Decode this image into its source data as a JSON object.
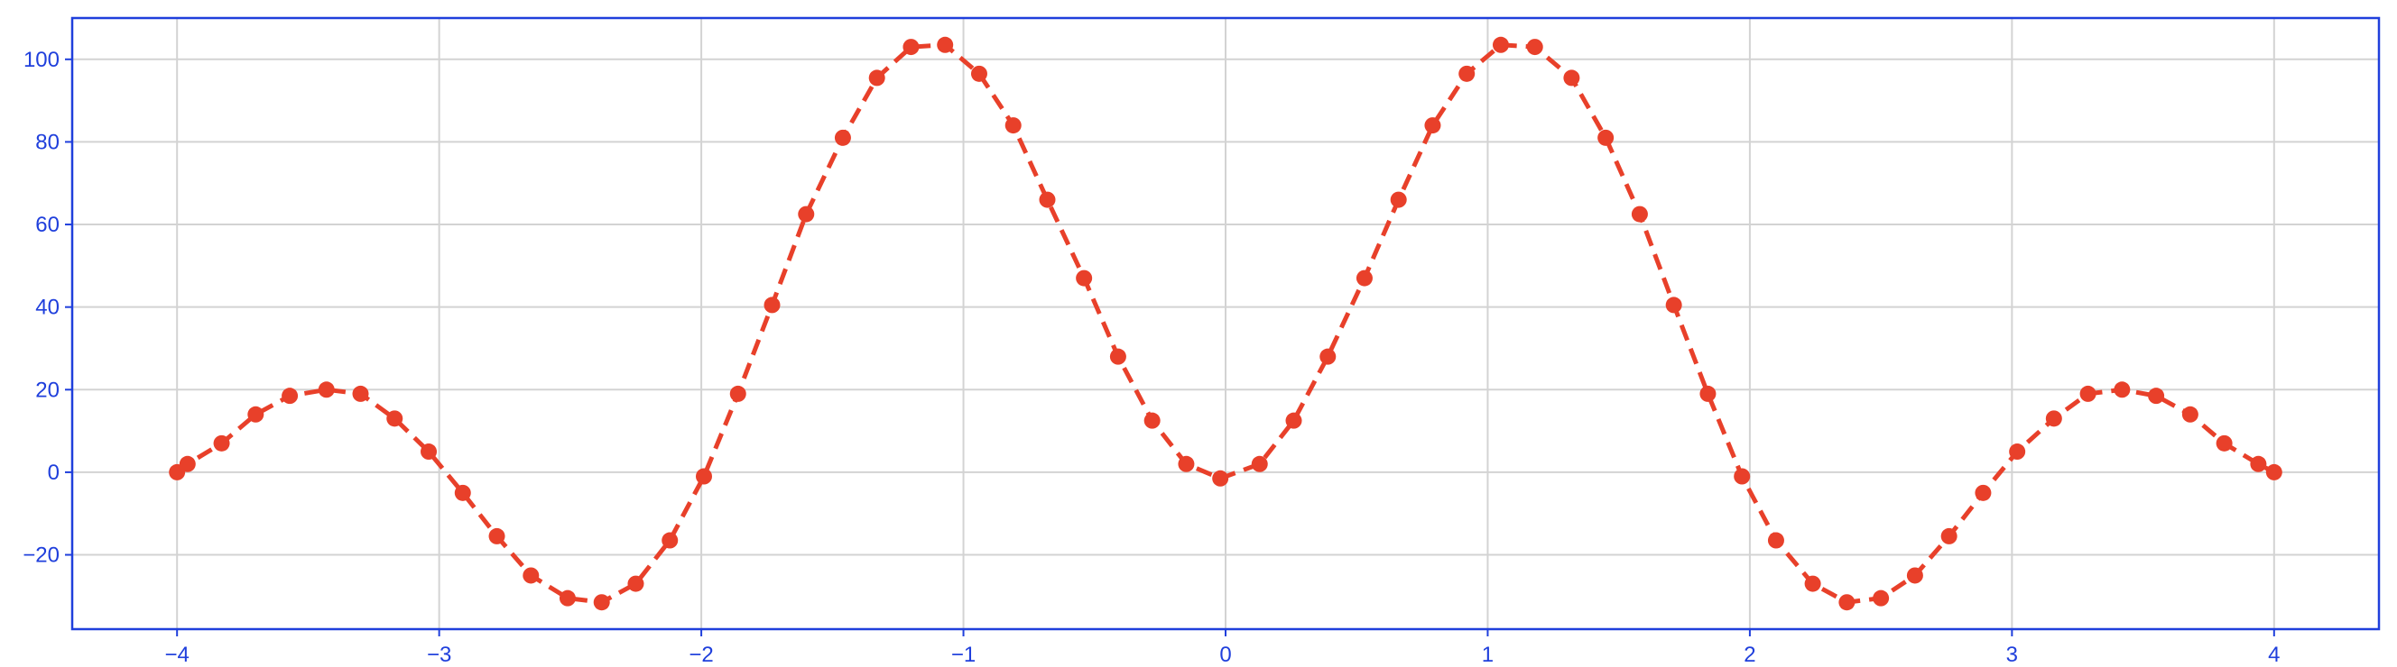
{
  "chart_data": {
    "type": "line",
    "title": "",
    "xlabel": "",
    "ylabel": "",
    "xlim": [
      -4.4,
      4.4
    ],
    "ylim": [
      -38,
      110
    ],
    "xticks": [
      -4,
      -3,
      -2,
      -1,
      0,
      1,
      2,
      3,
      4
    ],
    "xtick_labels": [
      "−4",
      "−3",
      "−2",
      "−1",
      "0",
      "1",
      "2",
      "3",
      "4"
    ],
    "yticks": [
      -20,
      0,
      20,
      40,
      60,
      80,
      100
    ],
    "ytick_labels": [
      "−20",
      "0",
      "20",
      "40",
      "60",
      "80",
      "100"
    ],
    "grid": true,
    "colors": {
      "series": "#e8402a",
      "frame": "#1f3fdc",
      "ticks": "#1f3fdc",
      "grid": "#d3d3d3"
    },
    "series": [
      {
        "line_style": "dashed",
        "marker": "circle",
        "x": [
          -4.0,
          -3.96,
          -3.83,
          -3.7,
          -3.57,
          -3.43,
          -3.3,
          -3.17,
          -3.04,
          -2.91,
          -2.78,
          -2.65,
          -2.51,
          -2.38,
          -2.25,
          -2.12,
          -1.99,
          -1.86,
          -1.73,
          -1.6,
          -1.46,
          -1.33,
          -1.2,
          -1.07,
          -0.94,
          -0.81,
          -0.68,
          -0.54,
          -0.41,
          -0.28,
          -0.15,
          -0.02,
          0.13,
          0.26,
          0.39,
          0.53,
          0.66,
          0.79,
          0.92,
          1.05,
          1.18,
          1.32,
          1.45,
          1.58,
          1.71,
          1.84,
          1.97,
          2.1,
          2.24,
          2.37,
          2.5,
          2.63,
          2.76,
          2.89,
          3.02,
          3.16,
          3.29,
          3.42,
          3.55,
          3.68,
          3.81,
          3.94,
          4.0
        ],
        "y": [
          0,
          2,
          7,
          14,
          18.5,
          20,
          19,
          13,
          5,
          -5,
          -15.5,
          -25,
          -30.5,
          -31.5,
          -27,
          -16.5,
          -1,
          19,
          40.5,
          62.5,
          81,
          95.5,
          103,
          103.5,
          96.5,
          84,
          66,
          47,
          28,
          12.5,
          2,
          -1.5,
          2,
          12.5,
          28,
          47,
          66,
          84,
          96.5,
          103.5,
          103,
          95.5,
          81,
          62.5,
          40.5,
          19,
          -1,
          -16.5,
          -27,
          -31.5,
          -30.5,
          -25,
          -15.5,
          -5,
          5,
          13,
          19,
          20,
          18.5,
          14,
          7,
          2,
          0
        ]
      }
    ]
  }
}
